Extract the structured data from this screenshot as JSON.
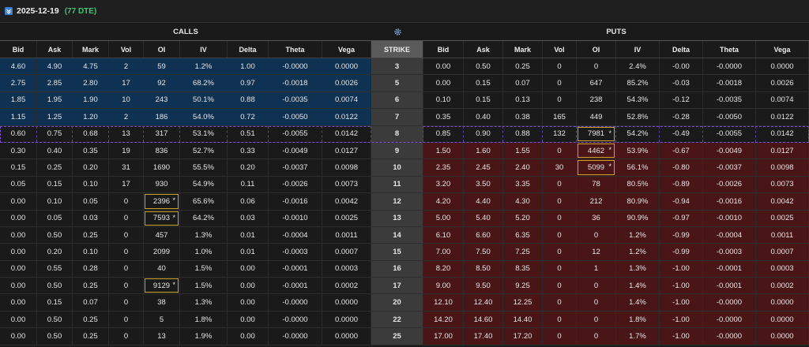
{
  "header": {
    "date": "2025-12-19",
    "dte": "(77 DTE)"
  },
  "sections": {
    "calls": "CALLS",
    "puts": "PUTS"
  },
  "columns": {
    "calls": [
      "Bid",
      "Ask",
      "Mark",
      "Vol",
      "OI",
      "IV",
      "Delta",
      "Theta",
      "Vega"
    ],
    "strike": "STRIKE",
    "puts": [
      "Bid",
      "Ask",
      "Mark",
      "Vol",
      "OI",
      "IV",
      "Delta",
      "Theta",
      "Vega"
    ]
  },
  "rows": [
    {
      "highlight": "calls",
      "strike": "3",
      "calls": [
        "4.60",
        "4.90",
        "4.75",
        "2",
        "59",
        "1.2%",
        "1.00",
        "-0.0000",
        "0.0000"
      ],
      "puts": [
        "0.00",
        "0.50",
        "0.25",
        "0",
        "0",
        "2.4%",
        "-0.00",
        "-0.0000",
        "0.0000"
      ]
    },
    {
      "highlight": "calls",
      "strike": "5",
      "calls": [
        "2.75",
        "2.85",
        "2.80",
        "17",
        "92",
        "68.2%",
        "0.97",
        "-0.0018",
        "0.0026"
      ],
      "puts": [
        "0.00",
        "0.15",
        "0.07",
        "0",
        "647",
        "85.2%",
        "-0.03",
        "-0.0018",
        "0.0026"
      ]
    },
    {
      "highlight": "calls",
      "strike": "6",
      "calls": [
        "1.85",
        "1.95",
        "1.90",
        "10",
        "243",
        "50.1%",
        "0.88",
        "-0.0035",
        "0.0074"
      ],
      "puts": [
        "0.10",
        "0.15",
        "0.13",
        "0",
        "238",
        "54.3%",
        "-0.12",
        "-0.0035",
        "0.0074"
      ]
    },
    {
      "highlight": "calls",
      "strike": "7",
      "calls": [
        "1.15",
        "1.25",
        "1.20",
        "2",
        "186",
        "54.0%",
        "0.72",
        "-0.0050",
        "0.0122"
      ],
      "puts": [
        "0.35",
        "0.40",
        "0.38",
        "165",
        "449",
        "52.8%",
        "-0.28",
        "-0.0050",
        "0.0122"
      ]
    },
    {
      "highlight": "atm",
      "strike": "8",
      "calls": [
        "0.60",
        "0.75",
        "0.68",
        "13",
        "317",
        "53.1%",
        "0.51",
        "-0.0055",
        "0.0142"
      ],
      "puts": [
        "0.85",
        "0.90",
        "0.88",
        "132",
        "7981",
        "54.2%",
        "-0.49",
        "-0.0055",
        "0.0142"
      ],
      "put_flag": "*"
    },
    {
      "highlight": "puts",
      "strike": "9",
      "calls": [
        "0.30",
        "0.40",
        "0.35",
        "19",
        "836",
        "52.7%",
        "0.33",
        "-0.0049",
        "0.0127"
      ],
      "puts": [
        "1.50",
        "1.60",
        "1.55",
        "0",
        "4462",
        "53.9%",
        "-0.67",
        "-0.0049",
        "0.0127"
      ],
      "put_flag": "*"
    },
    {
      "highlight": "puts",
      "strike": "10",
      "calls": [
        "0.15",
        "0.25",
        "0.20",
        "31",
        "1690",
        "55.5%",
        "0.20",
        "-0.0037",
        "0.0098"
      ],
      "puts": [
        "2.35",
        "2.45",
        "2.40",
        "30",
        "5099",
        "56.1%",
        "-0.80",
        "-0.0037",
        "0.0098"
      ],
      "put_flag": "*"
    },
    {
      "highlight": "puts",
      "strike": "11",
      "calls": [
        "0.05",
        "0.15",
        "0.10",
        "17",
        "930",
        "54.9%",
        "0.11",
        "-0.0026",
        "0.0073"
      ],
      "puts": [
        "3.20",
        "3.50",
        "3.35",
        "0",
        "78",
        "80.5%",
        "-0.89",
        "-0.0026",
        "0.0073"
      ]
    },
    {
      "highlight": "puts",
      "strike": "12",
      "calls": [
        "0.00",
        "0.10",
        "0.05",
        "0",
        "2396",
        "65.6%",
        "0.06",
        "-0.0016",
        "0.0042"
      ],
      "puts": [
        "4.20",
        "4.40",
        "4.30",
        "0",
        "212",
        "80.9%",
        "-0.94",
        "-0.0016",
        "0.0042"
      ],
      "call_flag": "*"
    },
    {
      "highlight": "puts",
      "strike": "13",
      "calls": [
        "0.00",
        "0.05",
        "0.03",
        "0",
        "7593",
        "64.2%",
        "0.03",
        "-0.0010",
        "0.0025"
      ],
      "puts": [
        "5.00",
        "5.40",
        "5.20",
        "0",
        "36",
        "90.9%",
        "-0.97",
        "-0.0010",
        "0.0025"
      ],
      "call_flag": "*"
    },
    {
      "highlight": "puts",
      "strike": "14",
      "calls": [
        "0.00",
        "0.50",
        "0.25",
        "0",
        "457",
        "1.3%",
        "0.01",
        "-0.0004",
        "0.0011"
      ],
      "puts": [
        "6.10",
        "6.60",
        "6.35",
        "0",
        "0",
        "1.2%",
        "-0.99",
        "-0.0004",
        "0.0011"
      ]
    },
    {
      "highlight": "puts",
      "strike": "15",
      "calls": [
        "0.00",
        "0.20",
        "0.10",
        "0",
        "2099",
        "1.0%",
        "0.01",
        "-0.0003",
        "0.0007"
      ],
      "puts": [
        "7.00",
        "7.50",
        "7.25",
        "0",
        "12",
        "1.2%",
        "-0.99",
        "-0.0003",
        "0.0007"
      ]
    },
    {
      "highlight": "puts",
      "strike": "16",
      "calls": [
        "0.00",
        "0.55",
        "0.28",
        "0",
        "40",
        "1.5%",
        "0.00",
        "-0.0001",
        "0.0003"
      ],
      "puts": [
        "8.20",
        "8.50",
        "8.35",
        "0",
        "1",
        "1.3%",
        "-1.00",
        "-0.0001",
        "0.0003"
      ]
    },
    {
      "highlight": "puts",
      "strike": "17",
      "calls": [
        "0.00",
        "0.50",
        "0.25",
        "0",
        "9129",
        "1.5%",
        "0.00",
        "-0.0001",
        "0.0002"
      ],
      "puts": [
        "9.00",
        "9.50",
        "9.25",
        "0",
        "0",
        "1.4%",
        "-1.00",
        "-0.0001",
        "0.0002"
      ],
      "call_flag": "*"
    },
    {
      "highlight": "puts",
      "strike": "20",
      "calls": [
        "0.00",
        "0.15",
        "0.07",
        "0",
        "38",
        "1.3%",
        "0.00",
        "-0.0000",
        "0.0000"
      ],
      "puts": [
        "12.10",
        "12.40",
        "12.25",
        "0",
        "0",
        "1.4%",
        "-1.00",
        "-0.0000",
        "0.0000"
      ]
    },
    {
      "highlight": "puts",
      "strike": "22",
      "calls": [
        "0.00",
        "0.50",
        "0.25",
        "0",
        "5",
        "1.8%",
        "0.00",
        "-0.0000",
        "0.0000"
      ],
      "puts": [
        "14.20",
        "14.60",
        "14.40",
        "0",
        "0",
        "1.8%",
        "-1.00",
        "-0.0000",
        "0.0000"
      ]
    },
    {
      "highlight": "puts",
      "strike": "25",
      "calls": [
        "0.00",
        "0.50",
        "0.25",
        "0",
        "13",
        "1.9%",
        "0.00",
        "-0.0000",
        "0.0000"
      ],
      "puts": [
        "17.00",
        "17.40",
        "17.20",
        "0",
        "0",
        "1.7%",
        "-1.00",
        "-0.0000",
        "0.0000"
      ]
    }
  ]
}
